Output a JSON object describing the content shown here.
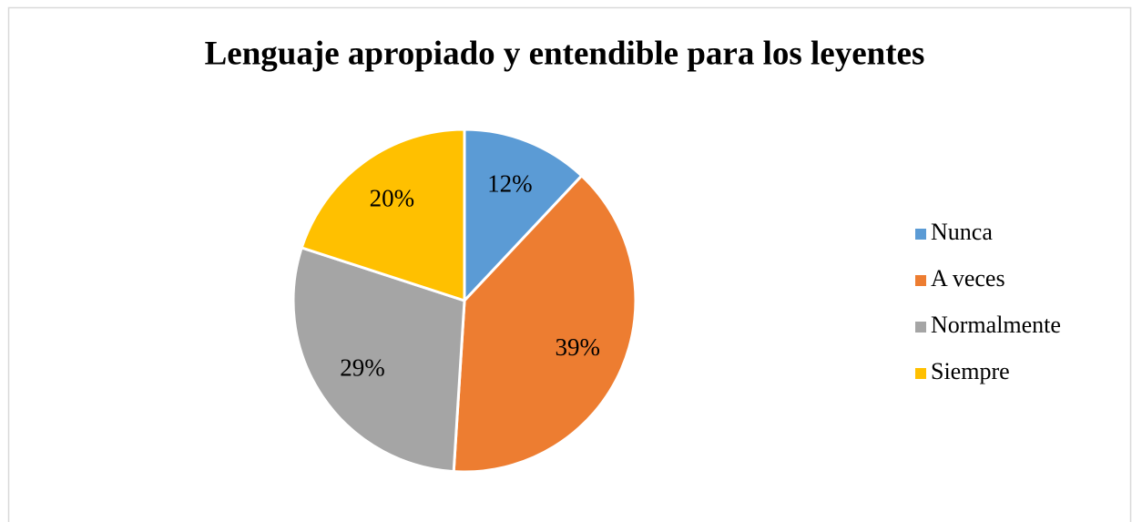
{
  "chart_data": {
    "type": "pie",
    "title": "Lenguaje apropiado y entendible para los leyentes",
    "categories": [
      "Nunca",
      "A veces",
      "Normalmente",
      "Siempre"
    ],
    "values": [
      12,
      39,
      29,
      20
    ],
    "value_labels": [
      "12%",
      "39%",
      "29%",
      "20%"
    ],
    "colors": [
      "#5b9bd5",
      "#ed7d31",
      "#a5a5a5",
      "#ffc000"
    ],
    "legend": "right"
  }
}
